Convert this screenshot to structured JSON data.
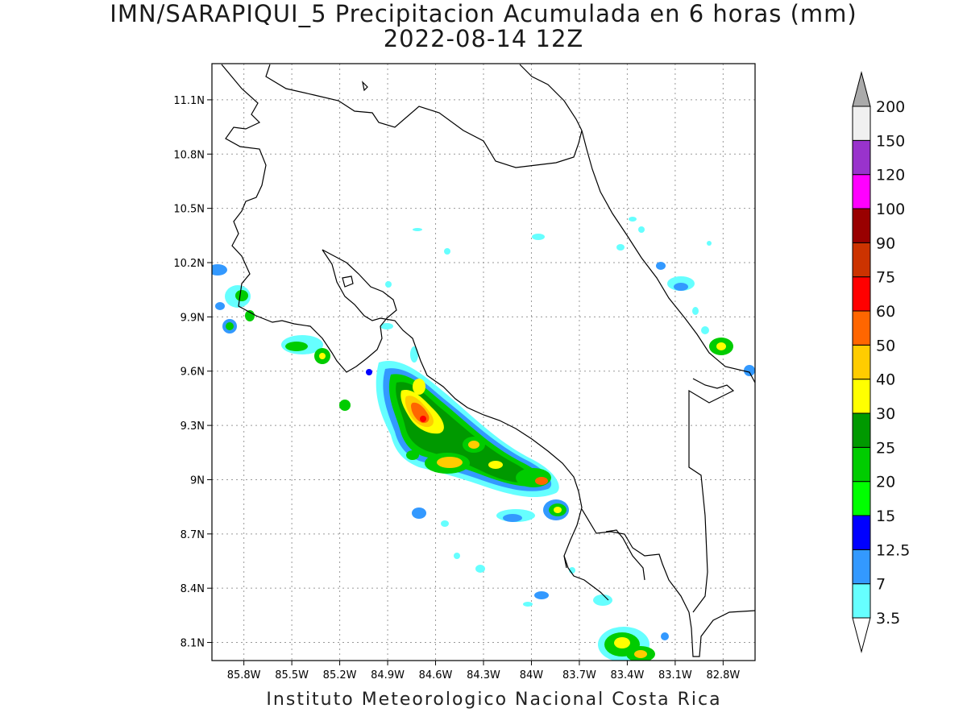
{
  "title": {
    "line1": "IMN/SARAPIQUI_5 Precipitacion Acumulada en 6 horas (mm)",
    "line2": "2022-08-14 12Z"
  },
  "credit": "Instituto Meteorologico Nacional Costa Rica",
  "map": {
    "lon_range": [
      -86.0,
      -82.6
    ],
    "lat_range": [
      8.0,
      11.3
    ],
    "lon_ticks": [
      "85.8W",
      "85.5W",
      "85.2W",
      "84.9W",
      "84.6W",
      "84.3W",
      "84W",
      "83.7W",
      "83.4W",
      "83.1W",
      "82.8W"
    ],
    "lat_ticks": [
      "11.1N",
      "10.8N",
      "10.5N",
      "10.2N",
      "9.9N",
      "9.6N",
      "9.3N",
      "9N",
      "8.7N",
      "8.4N",
      "8.1N"
    ],
    "grid": "dotted"
  },
  "colorbar": {
    "labels": [
      "3.5",
      "7",
      "12.5",
      "15",
      "20",
      "25",
      "30",
      "40",
      "50",
      "60",
      "75",
      "90",
      "100",
      "120",
      "150",
      "200"
    ],
    "colors": [
      "#ffffff",
      "#66ffff",
      "#3399ff",
      "#0000ff",
      "#00ff00",
      "#00cc00",
      "#009900",
      "#ffff00",
      "#ffcc00",
      "#ff6600",
      "#ff0000",
      "#cc3300",
      "#990000",
      "#ff00ff",
      "#9933cc",
      "#f0f0f0",
      "#aaaaaa"
    ]
  }
}
